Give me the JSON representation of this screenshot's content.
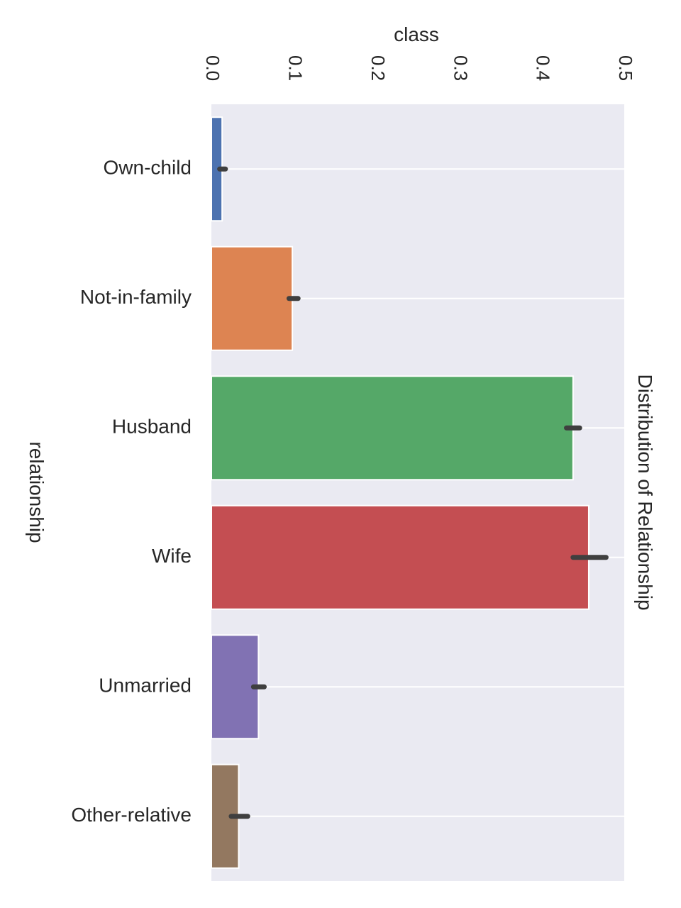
{
  "chart_data": {
    "type": "bar",
    "orientation": "horizontal",
    "title": "Distribution of Relationship",
    "xlabel": "class",
    "ylabel": "relationship",
    "xlim": [
      0,
      0.5
    ],
    "xticks": [
      0.0,
      0.1,
      0.2,
      0.3,
      0.4,
      0.5
    ],
    "xtick_labels": [
      "0.0",
      "0.1",
      "0.2",
      "0.3",
      "0.4",
      "0.5"
    ],
    "categories": [
      "Own-child",
      "Not-in-family",
      "Husband",
      "Wife",
      "Unmarried",
      "Other-relative"
    ],
    "values": [
      0.013,
      0.098,
      0.438,
      0.457,
      0.057,
      0.033
    ],
    "error_low": [
      0.01,
      0.094,
      0.43,
      0.438,
      0.051,
      0.024
    ],
    "error_high": [
      0.017,
      0.105,
      0.446,
      0.478,
      0.064,
      0.044
    ],
    "colors": [
      "#4c72b0",
      "#dd8452",
      "#55a868",
      "#c44e52",
      "#8172b3",
      "#937860"
    ],
    "background_color": "#eaeaf2",
    "grid_color": "#ffffff",
    "error_bar_color": "#3f3f3f",
    "grid": true
  }
}
